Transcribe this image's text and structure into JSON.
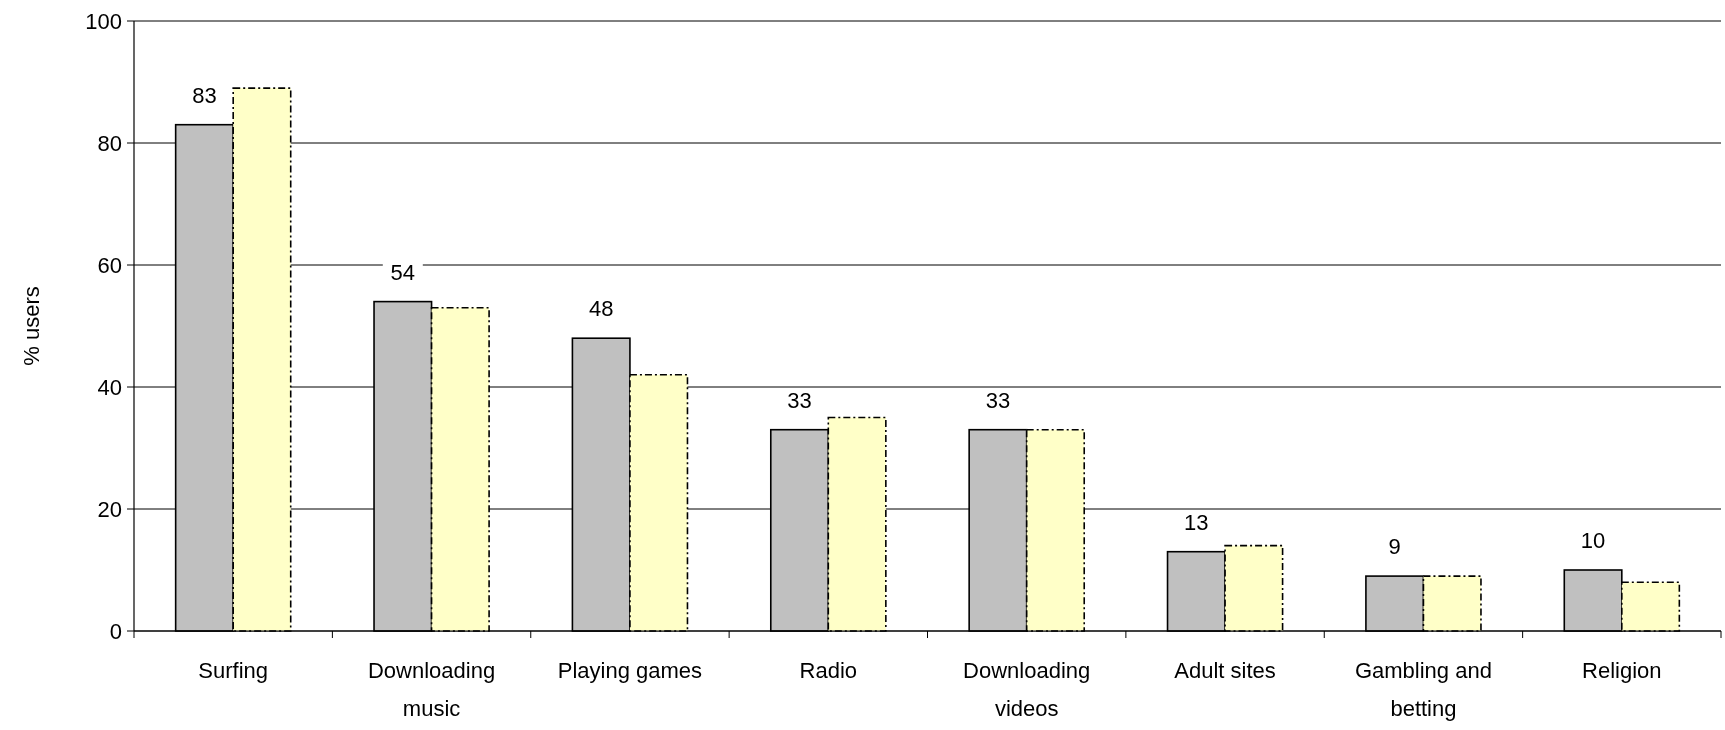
{
  "chart_data": {
    "type": "bar",
    "ylabel": "% users",
    "categories": [
      "Surfing",
      "Downloading music",
      "Playing games",
      "Radio",
      "Downloading videos",
      "Adult sites",
      "Gambling and betting",
      "Religion"
    ],
    "series": [
      {
        "color": "#c0c0c0",
        "values": [
          83,
          54,
          48,
          33,
          33,
          13,
          9,
          10
        ],
        "value_labels": [
          "83",
          "54",
          "48",
          "33",
          "33",
          "13",
          "9",
          "10"
        ]
      },
      {
        "color": "#ffffc8",
        "values": [
          89,
          53,
          42,
          35,
          33,
          14,
          9,
          8
        ]
      }
    ],
    "ylim": [
      0,
      100
    ],
    "yticks": [
      0,
      20,
      40,
      60,
      80,
      100
    ],
    "grid": "y"
  }
}
